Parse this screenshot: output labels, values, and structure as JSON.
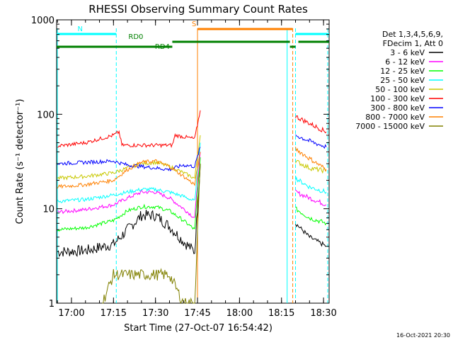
{
  "chart_data": {
    "type": "line",
    "title": "RHESSI Observing Summary Count Rates",
    "xlabel": "Start Time (27-Oct-07 16:54:42)",
    "ylabel": "Count Rate (s⁻¹ detector⁻¹)",
    "y_scale": "log",
    "ylim": [
      1,
      1000
    ],
    "xlim": [
      "16:54:42",
      "18:32:00"
    ],
    "x_tick_labels": [
      "17:00",
      "17:15",
      "17:30",
      "17:45",
      "18:00",
      "18:15",
      "18:30"
    ],
    "y_tick_labels": [
      "1",
      "10",
      "100",
      "1000"
    ],
    "legend_header": [
      "Det 1,3,4,5,6,9,",
      "FDecim 1, Att 0"
    ],
    "legend_position": "right",
    "series": [
      {
        "name": "3 - 6 keV",
        "color": "#000000",
        "x": [
          "16:55",
          "17:05",
          "17:15",
          "17:20",
          "17:25",
          "17:30",
          "17:35",
          "17:40",
          "17:44",
          "17:46"
        ],
        "values": [
          3.5,
          3.6,
          4.2,
          6.0,
          8.5,
          8.5,
          6.5,
          4.5,
          3.5,
          30
        ]
      },
      {
        "name": "6 - 12 keV",
        "color": "#ff00ff",
        "x": [
          "16:55",
          "17:05",
          "17:15",
          "17:20",
          "17:25",
          "17:30",
          "17:35",
          "17:40",
          "17:44",
          "17:46"
        ],
        "values": [
          9.2,
          9.8,
          11,
          13,
          15,
          15,
          13,
          10,
          8,
          40
        ]
      },
      {
        "name": "12 - 25 keV",
        "color": "#00ff00",
        "x": [
          "16:55",
          "17:05",
          "17:15",
          "17:20",
          "17:25",
          "17:30",
          "17:35",
          "17:40",
          "17:44",
          "17:46"
        ],
        "values": [
          6,
          6.3,
          7.5,
          9.5,
          10.5,
          10.5,
          9.5,
          7.5,
          6,
          35
        ]
      },
      {
        "name": "25 - 50 keV",
        "color": "#00ffff",
        "x": [
          "16:55",
          "17:05",
          "17:15",
          "17:20",
          "17:25",
          "17:30",
          "17:35",
          "17:40",
          "17:44",
          "17:46"
        ],
        "values": [
          12,
          12.5,
          14,
          15,
          16,
          16,
          15,
          13.5,
          12,
          50
        ]
      },
      {
        "name": "50 - 100 keV",
        "color": "#c8c800",
        "x": [
          "16:55",
          "17:05",
          "17:15",
          "17:20",
          "17:25",
          "17:30",
          "17:35",
          "17:40",
          "17:44",
          "17:46"
        ],
        "values": [
          21,
          22,
          24,
          27,
          30,
          31,
          28,
          24,
          21,
          60
        ]
      },
      {
        "name": "100 - 300 keV",
        "color": "#ff0000",
        "x": [
          "16:55",
          "17:05",
          "17:15",
          "17:17",
          "17:18",
          "17:30",
          "17:36",
          "17:37",
          "17:44",
          "17:46"
        ],
        "values": [
          46,
          50,
          60,
          65,
          47,
          47,
          47,
          60,
          55,
          110
        ]
      },
      {
        "name": "300 - 800 keV",
        "color": "#0000ff",
        "x": [
          "16:55",
          "17:05",
          "17:15",
          "17:20",
          "17:25",
          "17:30",
          "17:35",
          "17:40",
          "17:44",
          "17:46"
        ],
        "values": [
          30,
          31,
          32,
          29,
          28,
          27,
          26,
          29,
          28,
          45
        ]
      },
      {
        "name": "800 - 7000 keV",
        "color": "#ff8000",
        "x": [
          "16:55",
          "17:05",
          "17:15",
          "17:20",
          "17:25",
          "17:30",
          "17:35",
          "17:40",
          "17:44",
          "17:46"
        ],
        "values": [
          17,
          18,
          20,
          26,
          31,
          32,
          28,
          22,
          18,
          40
        ]
      },
      {
        "name": "7000 - 15000 keV",
        "color": "#808000",
        "x": [
          "17:11",
          "17:15",
          "17:20",
          "17:25",
          "17:30",
          "17:35",
          "17:40",
          "17:44",
          "17:46"
        ],
        "values": [
          1,
          2,
          2,
          2,
          2,
          2,
          1,
          1,
          30
        ]
      }
    ],
    "series_after_gap": {
      "x": [
        "18:20",
        "18:25",
        "18:31"
      ],
      "values": {
        "100 - 300 keV": [
          95,
          80,
          65
        ],
        "300 - 800 keV": [
          60,
          52,
          45
        ],
        "800 - 7000 keV": [
          43,
          34,
          26
        ],
        "50 - 100 keV": [
          32,
          27,
          25
        ],
        "25 - 50 keV": [
          21,
          17,
          15
        ],
        "6 - 12 keV": [
          15,
          13,
          11
        ],
        "12 - 25 keV": [
          10,
          8,
          7
        ],
        "3 - 6 keV": [
          7,
          5,
          4
        ]
      }
    },
    "flags": {
      "N": {
        "label": "N",
        "color": "#00ffff",
        "segments": [
          [
            "16:54:42",
            "17:16"
          ],
          [
            "18:20",
            "18:32"
          ]
        ]
      },
      "S": {
        "label": "S",
        "color": "#ff8000",
        "segments": [
          [
            "17:45",
            "18:19"
          ]
        ]
      },
      "RD0": {
        "label": "RD0",
        "color": "#008000",
        "segments": [
          [
            "17:36",
            "18:18"
          ],
          [
            "18:21",
            "18:32"
          ]
        ]
      },
      "RD4": {
        "label": "RD4",
        "color": "#008000",
        "segments": [
          [
            "16:54:42",
            "17:36"
          ],
          [
            "18:18",
            "18:20"
          ]
        ]
      }
    },
    "annotations": [
      "16-Oct-2021 20:30"
    ]
  }
}
